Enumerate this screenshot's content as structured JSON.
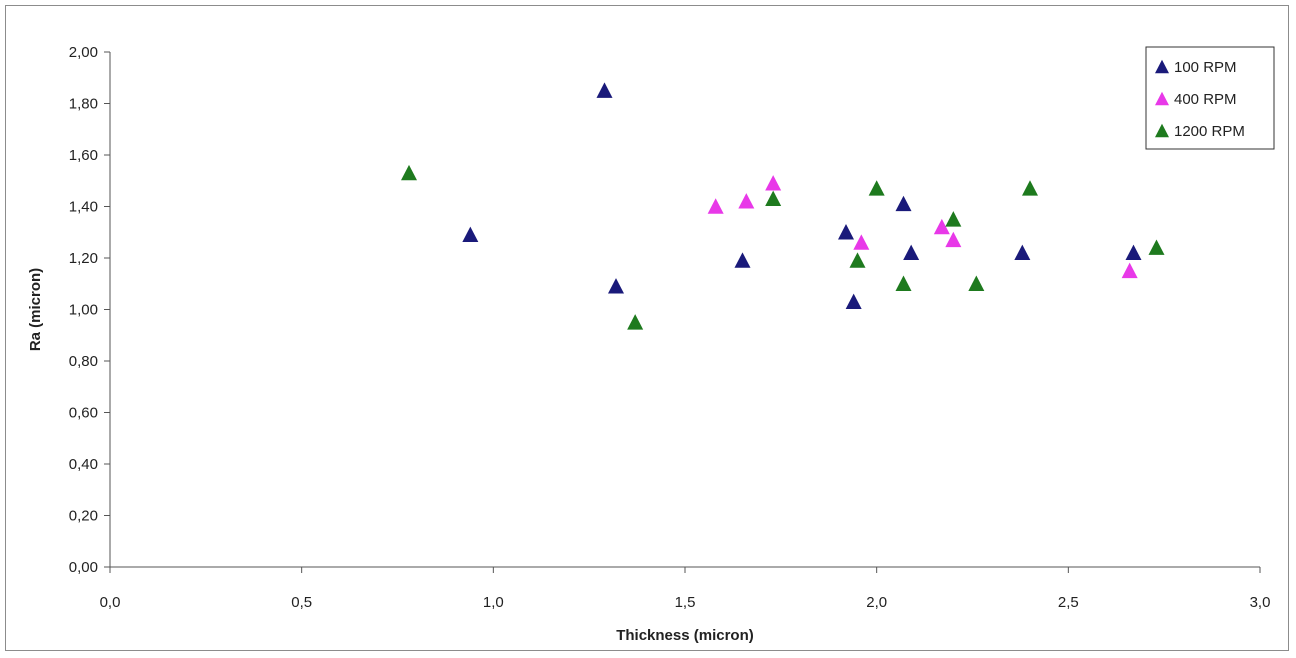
{
  "chart_data": {
    "type": "scatter",
    "xlabel": "Thickness (micron)",
    "ylabel": "Ra (micron)",
    "xlim": [
      0.0,
      3.0
    ],
    "ylim": [
      0.0,
      2.0
    ],
    "x_ticks": [
      "0,0",
      "0,5",
      "1,0",
      "1,5",
      "2,0",
      "2,5",
      "3,0"
    ],
    "y_ticks": [
      "0,00",
      "0,20",
      "0,40",
      "0,60",
      "0,80",
      "1,00",
      "1,20",
      "1,40",
      "1,60",
      "1,80",
      "2,00"
    ],
    "grid": false,
    "legend_position": "top-right",
    "marker": "triangle",
    "series": [
      {
        "name": "100 RPM",
        "color": "#1a1a7a",
        "points": [
          [
            0.94,
            1.29
          ],
          [
            1.29,
            1.85
          ],
          [
            1.32,
            1.09
          ],
          [
            1.65,
            1.19
          ],
          [
            1.92,
            1.3
          ],
          [
            1.94,
            1.03
          ],
          [
            2.07,
            1.41
          ],
          [
            2.09,
            1.22
          ],
          [
            2.38,
            1.22
          ],
          [
            2.67,
            1.22
          ]
        ]
      },
      {
        "name": "400 RPM",
        "color": "#e838e8",
        "points": [
          [
            1.58,
            1.4
          ],
          [
            1.66,
            1.42
          ],
          [
            1.73,
            1.49
          ],
          [
            1.96,
            1.26
          ],
          [
            2.17,
            1.32
          ],
          [
            2.2,
            1.27
          ],
          [
            2.66,
            1.15
          ]
        ]
      },
      {
        "name": "1200 RPM",
        "color": "#1e7a1e",
        "points": [
          [
            0.78,
            1.53
          ],
          [
            1.37,
            0.95
          ],
          [
            1.73,
            1.43
          ],
          [
            1.95,
            1.19
          ],
          [
            2.0,
            1.47
          ],
          [
            2.07,
            1.1
          ],
          [
            2.2,
            1.35
          ],
          [
            2.26,
            1.1
          ],
          [
            2.4,
            1.47
          ],
          [
            2.73,
            1.24
          ]
        ]
      }
    ]
  }
}
